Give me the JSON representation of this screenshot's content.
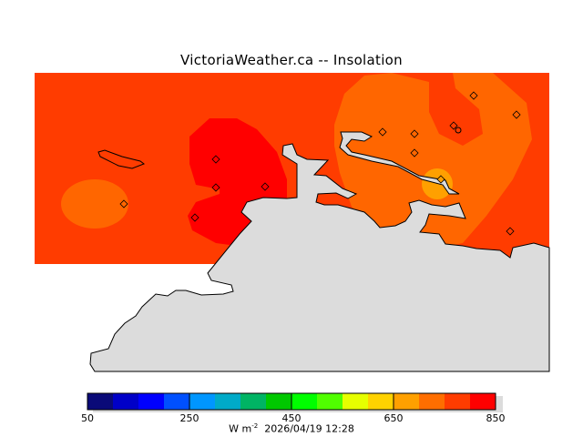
{
  "title": "VictoriaWeather.ca  --  Insolation",
  "colors": {
    "background_field": "#FF3C00",
    "field_red": "#FF0000",
    "field_orange": "#FF6600",
    "field_amber": "#FFA000",
    "land": "#DCDCDC"
  },
  "colorbar": {
    "colors": [
      "#0A0A78",
      "#0000C8",
      "#0000FF",
      "#0050FF",
      "#0096FF",
      "#00AAC8",
      "#00B464",
      "#00C800",
      "#00FF00",
      "#50FF00",
      "#E6FF00",
      "#FFD200",
      "#FFA000",
      "#FF6E00",
      "#FF3C00",
      "#FF0000"
    ],
    "min": 50,
    "max": 850,
    "labels": [
      "50",
      "250",
      "450",
      "650",
      "850"
    ],
    "units": "W m",
    "units_exp": "-2",
    "timestamp": "2026/04/19 12:28"
  },
  "stations": [
    {
      "id": "s1",
      "value_band": "orange"
    },
    {
      "id": "s2",
      "value_band": "orange"
    },
    {
      "id": "s3",
      "value_band": "orange"
    },
    {
      "id": "s4",
      "value_band": "orange"
    },
    {
      "id": "s5",
      "value_band": "orange"
    },
    {
      "id": "s6",
      "value_band": "orange-red"
    },
    {
      "id": "s7",
      "value_band": "amber"
    },
    {
      "id": "s8",
      "value_band": "red"
    },
    {
      "id": "s9",
      "value_band": "red"
    },
    {
      "id": "s10",
      "value_band": "red"
    },
    {
      "id": "s11",
      "value_band": "red"
    },
    {
      "id": "s12",
      "value_band": "orange"
    },
    {
      "id": "s13",
      "value_band": "orange-red"
    }
  ]
}
